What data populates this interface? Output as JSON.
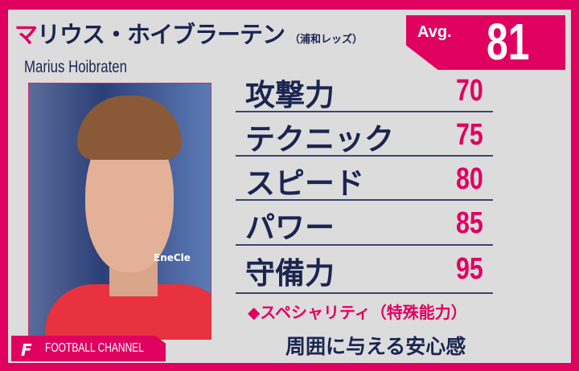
{
  "player": {
    "name_first": "マ",
    "name_rest": "リウス・ホイブラーテン",
    "club": "（浦和レッズ）",
    "name_en": "Marius Hoibraten"
  },
  "average": {
    "label": "Avg.",
    "value": "81"
  },
  "stats": [
    {
      "label": "攻撃力",
      "value": "70"
    },
    {
      "label": "テクニック",
      "value": "75"
    },
    {
      "label": "スピード",
      "value": "80"
    },
    {
      "label": "パワー",
      "value": "85"
    },
    {
      "label": "守備力",
      "value": "95"
    }
  ],
  "speciality": {
    "heading": "◆スペシャリティ（特殊能力）",
    "text": "周囲に与える安心感"
  },
  "photo": {
    "sponsor": "EneCle"
  },
  "brand": {
    "icon": "football-channel-f-icon",
    "name": "FOOTBALL CHANNEL"
  },
  "colors": {
    "accent": "#e0005f",
    "navy": "#1b2550",
    "background": "#dcdcdd"
  }
}
